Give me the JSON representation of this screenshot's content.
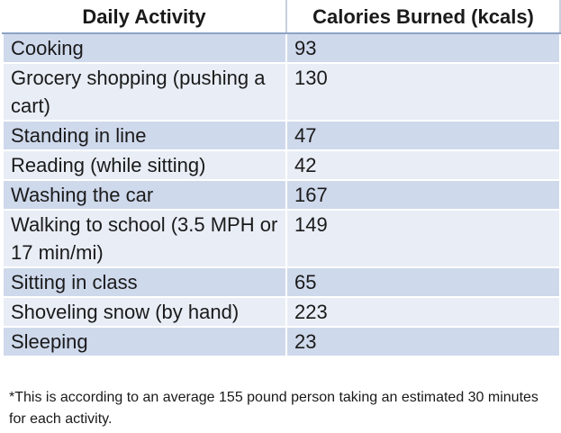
{
  "table": {
    "headers": [
      "Daily Activity",
      "Calories Burned (kcals)"
    ],
    "rows": [
      {
        "activity": "Cooking",
        "calories": "93"
      },
      {
        "activity": "Grocery shopping (pushing a cart)",
        "calories": "130"
      },
      {
        "activity": "Standing in line",
        "calories": "47"
      },
      {
        "activity": "Reading (while sitting)",
        "calories": "42"
      },
      {
        "activity": "Washing the car",
        "calories": "167"
      },
      {
        "activity": "Walking to school (3.5 MPH or 17 min/mi)",
        "calories": "149"
      },
      {
        "activity": "Sitting in class",
        "calories": "65"
      },
      {
        "activity": "Shoveling snow (by hand)",
        "calories": "223"
      },
      {
        "activity": "Sleeping",
        "calories": "23"
      }
    ]
  },
  "footnote": "*This is according to an average 155  pound person taking an estimated 30 minutes for each activity.",
  "colors": {
    "row_dark": "#cfd9ec",
    "row_light": "#e8edf6"
  }
}
